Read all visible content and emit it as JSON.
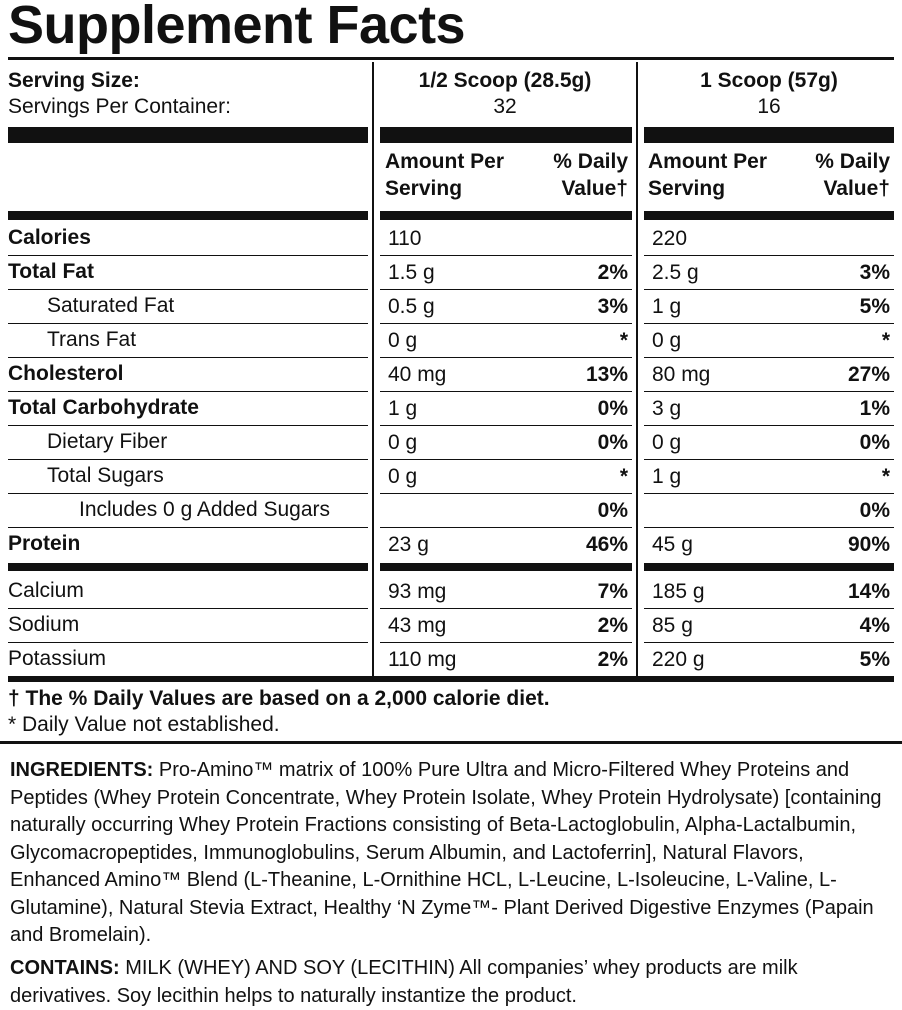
{
  "title": "Supplement Facts",
  "serving": {
    "size_label": "Serving Size:",
    "per_container_label": "Servings Per Container:",
    "columns": [
      {
        "size": "1/2 Scoop (28.5g)",
        "servings": "32"
      },
      {
        "size": "1 Scoop (57g)",
        "servings": "16"
      }
    ]
  },
  "headers": {
    "amount": "Amount Per Serving",
    "daily_value": "% Daily Value†"
  },
  "rows": [
    {
      "name": "Calories",
      "amounts": [
        "110",
        "220"
      ],
      "daily_values": [
        null,
        null
      ]
    },
    {
      "name": "Total Fat",
      "amounts": [
        "1.5 g",
        "2.5 g"
      ],
      "daily_values": [
        "2%",
        "3%"
      ]
    },
    {
      "name": "Saturated Fat",
      "amounts": [
        "0.5 g",
        "1 g"
      ],
      "daily_values": [
        "3%",
        "5%"
      ]
    },
    {
      "name": "Trans Fat",
      "amounts": [
        "0 g",
        "0 g"
      ],
      "daily_values": [
        "*",
        "*"
      ]
    },
    {
      "name": "Cholesterol",
      "amounts": [
        "40 mg",
        "80 mg"
      ],
      "daily_values": [
        "13%",
        "27%"
      ]
    },
    {
      "name": "Total Carbohydrate",
      "amounts": [
        "1 g",
        "3 g"
      ],
      "daily_values": [
        "0%",
        "1%"
      ]
    },
    {
      "name": "Dietary Fiber",
      "amounts": [
        "0 g",
        "0 g"
      ],
      "daily_values": [
        "0%",
        "0%"
      ]
    },
    {
      "name": "Total Sugars",
      "amounts": [
        "0 g",
        "1 g"
      ],
      "daily_values": [
        "*",
        "*"
      ]
    },
    {
      "name": "Includes 0 g Added Sugars",
      "amounts": [
        null,
        null
      ],
      "daily_values": [
        "0%",
        "0%"
      ]
    },
    {
      "name": "Protein",
      "amounts": [
        "23 g",
        "45 g"
      ],
      "daily_values": [
        "46%",
        "90%"
      ]
    },
    {
      "name": "Calcium",
      "amounts": [
        "93 mg",
        "185 g"
      ],
      "daily_values": [
        "7%",
        "14%"
      ]
    },
    {
      "name": "Sodium",
      "amounts": [
        "43 mg",
        "85 g"
      ],
      "daily_values": [
        "2%",
        "4%"
      ]
    },
    {
      "name": "Potassium",
      "amounts": [
        "110 mg",
        "220 g"
      ],
      "daily_values": [
        "2%",
        "5%"
      ]
    }
  ],
  "footnotes": [
    "† The % Daily Values are based on a 2,000 calorie diet.",
    "* Daily Value not established."
  ],
  "ingredients": {
    "label": "INGREDIENTS:",
    "text": "Pro-Amino™ matrix of 100% Pure Ultra and Micro-Filtered Whey Proteins and Peptides (Whey Protein Concentrate, Whey Protein Isolate, Whey Protein Hydrolysate) [containing naturally occurring Whey Protein Fractions consisting of Beta-Lactoglobulin, Alpha-Lactalbumin, Glycomacropeptides, Immunoglobulins, Serum Albumin, and Lactoferrin], Natural Flavors, Enhanced Amino™ Blend (L-Theanine, L-Ornithine HCL, L-Leucine, L-Isoleucine, L-Valine, L-Glutamine), Natural Stevia Extract, Healthy ‘N Zyme™- Plant Derived Digestive Enzymes (Papain and Bromelain)."
  },
  "contains": {
    "label": "CONTAINS:",
    "text": "MILK (WHEY) AND SOY (LECITHIN) All companies’ whey products are milk derivatives. Soy lecithin helps to naturally instantize the product."
  }
}
